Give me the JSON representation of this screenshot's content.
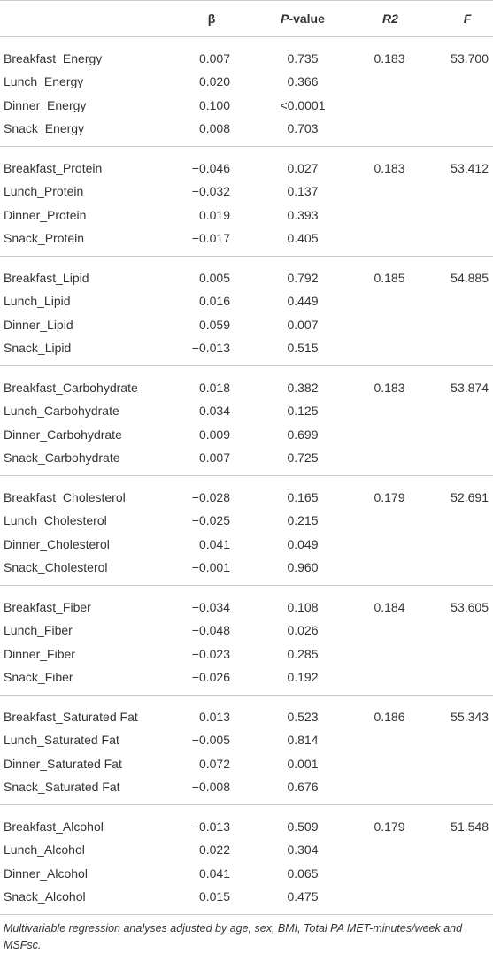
{
  "header": {
    "columns": [
      "β",
      [
        "P",
        "-value"
      ],
      "R2",
      "F"
    ]
  },
  "groups": [
    {
      "rows": [
        [
          "Breakfast_Energy",
          "0.007",
          "0.735"
        ],
        [
          "Lunch_Energy",
          "0.020",
          "0.366"
        ],
        [
          "Dinner_Energy",
          "0.100",
          "<0.0001"
        ],
        [
          "Snack_Energy",
          "0.008",
          "0.703"
        ]
      ],
      "r2": "0.183",
      "f": "53.700"
    },
    {
      "rows": [
        [
          "Breakfast_Protein",
          "−0.046",
          "0.027"
        ],
        [
          "Lunch_Protein",
          "−0.032",
          "0.137"
        ],
        [
          "Dinner_Protein",
          "0.019",
          "0.393"
        ],
        [
          "Snack_Protein",
          "−0.017",
          "0.405"
        ]
      ],
      "r2": "0.183",
      "f": "53.412"
    },
    {
      "rows": [
        [
          "Breakfast_Lipid",
          "0.005",
          "0.792"
        ],
        [
          "Lunch_Lipid",
          "0.016",
          "0.449"
        ],
        [
          "Dinner_Lipid",
          "0.059",
          "0.007"
        ],
        [
          "Snack_Lipid",
          "−0.013",
          "0.515"
        ]
      ],
      "r2": "0.185",
      "f": "54.885"
    },
    {
      "rows": [
        [
          "Breakfast_Carbohydrate",
          "0.018",
          "0.382"
        ],
        [
          "Lunch_Carbohydrate",
          "0.034",
          "0.125"
        ],
        [
          "Dinner_Carbohydrate",
          "0.009",
          "0.699"
        ],
        [
          "Snack_Carbohydrate",
          "0.007",
          "0.725"
        ]
      ],
      "r2": "0.183",
      "f": "53.874"
    },
    {
      "rows": [
        [
          "Breakfast_Cholesterol",
          "−0.028",
          "0.165"
        ],
        [
          "Lunch_Cholesterol",
          "−0.025",
          "0.215"
        ],
        [
          "Dinner_Cholesterol",
          "0.041",
          "0.049"
        ],
        [
          "Snack_Cholesterol",
          "−0.001",
          "0.960"
        ]
      ],
      "r2": "0.179",
      "f": "52.691"
    },
    {
      "rows": [
        [
          "Breakfast_Fiber",
          "−0.034",
          "0.108"
        ],
        [
          "Lunch_Fiber",
          "−0.048",
          "0.026"
        ],
        [
          "Dinner_Fiber",
          "−0.023",
          "0.285"
        ],
        [
          "Snack_Fiber",
          "−0.026",
          "0.192"
        ]
      ],
      "r2": "0.184",
      "f": "53.605"
    },
    {
      "rows": [
        [
          "Breakfast_Saturated Fat",
          "0.013",
          "0.523"
        ],
        [
          "Lunch_Saturated Fat",
          "−0.005",
          "0.814"
        ],
        [
          "Dinner_Saturated Fat",
          "0.072",
          "0.001"
        ],
        [
          "Snack_Saturated Fat",
          "−0.008",
          "0.676"
        ]
      ],
      "r2": "0.186",
      "f": "55.343"
    },
    {
      "rows": [
        [
          "Breakfast_Alcohol",
          "−0.013",
          "0.509"
        ],
        [
          "Lunch_Alcohol",
          "0.022",
          "0.304"
        ],
        [
          "Dinner_Alcohol",
          "0.041",
          "0.065"
        ],
        [
          "Snack_Alcohol",
          "0.015",
          "0.475"
        ]
      ],
      "r2": "0.179",
      "f": "51.548"
    }
  ],
  "footnote": "Multivariable regression analyses adjusted by age, sex, BMI, Total PA MET-minutes/week and MSFsc."
}
